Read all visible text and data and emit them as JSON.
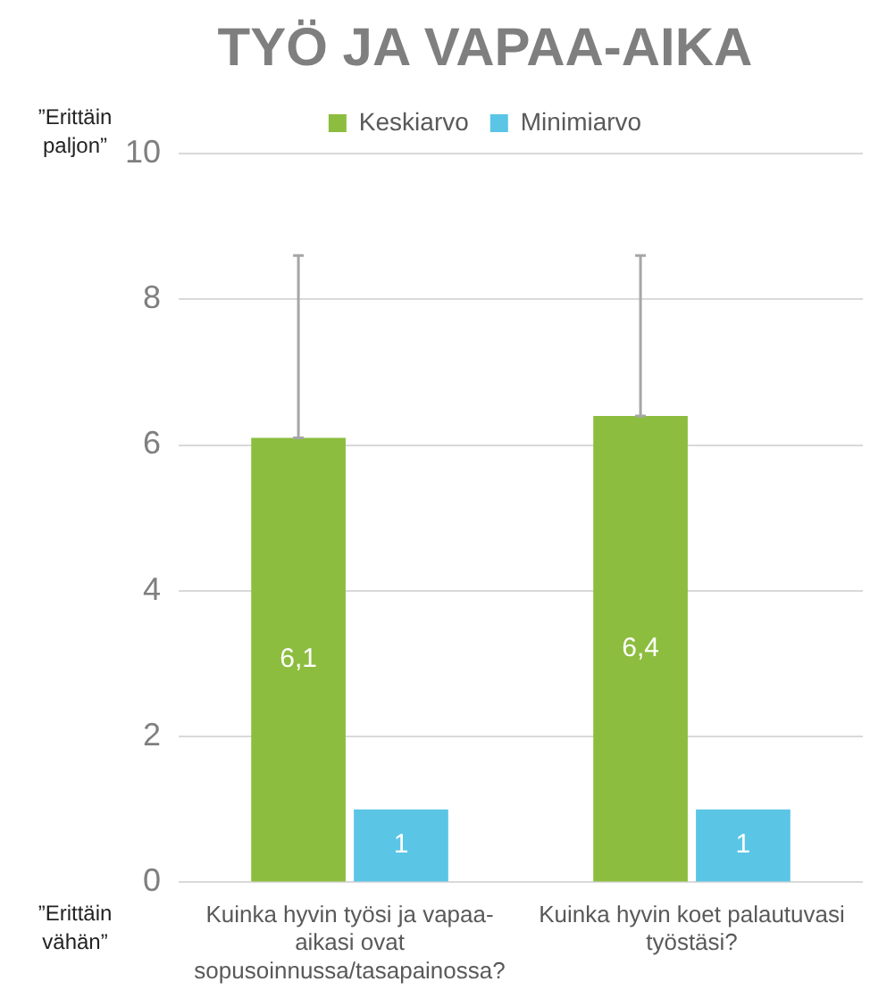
{
  "chart_data": {
    "type": "bar",
    "title": "TYÖ JA VAPAA-AIKA",
    "categories": [
      "Kuinka hyvin työsi ja vapaa-aikasi ovat sopusoinnussa/tasapainossa?",
      "Kuinka hyvin koet palautuvasi työstäsi?"
    ],
    "series": [
      {
        "name": "Keskiarvo",
        "color": "#8cbd3f",
        "values": [
          6.1,
          6.4
        ],
        "value_labels": [
          "6,1",
          "6,4"
        ],
        "errors": [
          [
            6.1,
            8.6
          ],
          [
            6.4,
            8.6
          ]
        ]
      },
      {
        "name": "Minimiarvo",
        "color": "#5bc5e6",
        "values": [
          1,
          1
        ],
        "value_labels": [
          "1",
          "1"
        ]
      }
    ],
    "ylim": [
      0,
      10
    ],
    "yticks": [
      0,
      2,
      4,
      6,
      8,
      10
    ],
    "grid": "y",
    "legend": "top",
    "annotations": [
      "”Erittäin paljon”",
      "”Erittäin vähän”"
    ]
  }
}
